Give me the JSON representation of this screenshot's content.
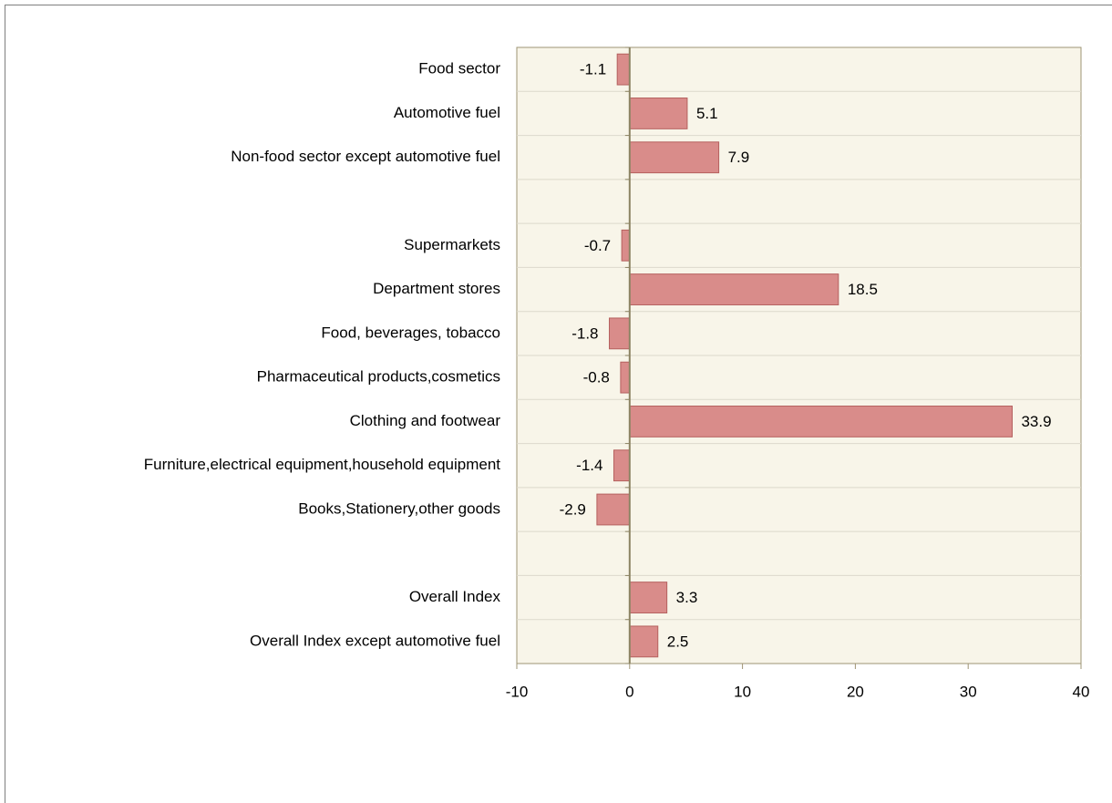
{
  "chart_data": {
    "type": "hbar",
    "categories": [
      "Food sector",
      "Automotive fuel",
      "Non-food sector except automotive fuel",
      null,
      "Supermarkets",
      "Department stores",
      "Food, beverages, tobacco",
      "Pharmaceutical products,cosmetics",
      "Clothing and footwear",
      "Furniture,electrical equipment,household equipment",
      "Books,Stationery,other goods",
      null,
      "Overall Index",
      "Overall Index except automotive fuel"
    ],
    "values": [
      -1.1,
      5.1,
      7.9,
      null,
      -0.7,
      18.5,
      -1.8,
      -0.8,
      33.9,
      -1.4,
      -2.9,
      null,
      3.3,
      2.5
    ],
    "color": "#d98c8a",
    "xlim": [
      -10,
      40
    ],
    "xticks": [
      -10,
      0,
      10,
      20,
      30,
      40
    ],
    "grid": true
  }
}
